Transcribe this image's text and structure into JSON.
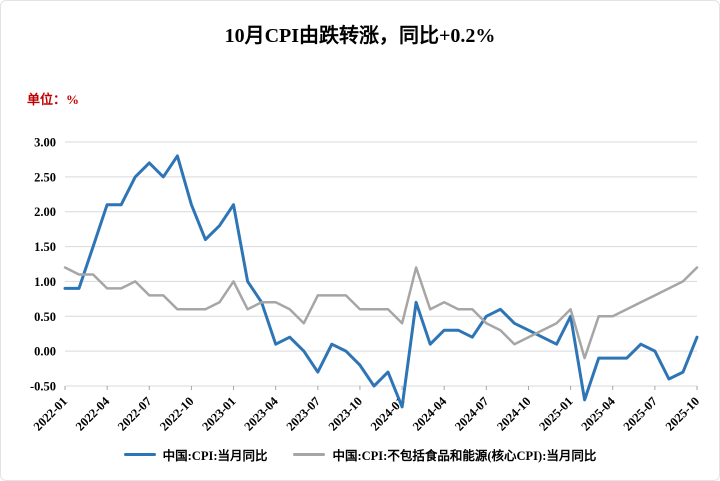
{
  "title": "10月CPI由跌转涨，同比+0.2%",
  "unit_label": "单位：%",
  "legend": {
    "items": [
      {
        "label": "中国:CPI:当月同比",
        "color": "#2E75B6",
        "thickness": 3
      },
      {
        "label": "中国:CPI:不包括食品和能源(核心CPI):当月同比",
        "color": "#A6A6A6",
        "thickness": 2.5
      }
    ]
  },
  "chart_data": {
    "type": "line",
    "x_tick_labels": [
      "2022-01",
      "2022-04",
      "2022-07",
      "2022-10",
      "2023-01",
      "2023-04",
      "2023-07",
      "2023-10",
      "2024-01",
      "2024-04",
      "2024-07",
      "2024-10",
      "2025-01",
      "2025-04",
      "2025-07",
      "2025-10"
    ],
    "x_tick_step": 3,
    "y_tick_labels": [
      "3.00",
      "2.50",
      "2.00",
      "1.50",
      "1.00",
      "0.50",
      "0.00",
      "-0.50"
    ],
    "ylim": [
      -0.5,
      3.0
    ],
    "y_tick_step": 0.5,
    "grid": true,
    "grid_color": "#D9D9D9",
    "legend_position": "bottom",
    "series": [
      {
        "name": "中国:CPI:当月同比",
        "color": "#2E75B6",
        "width": 3,
        "values": [
          0.9,
          0.9,
          1.5,
          2.1,
          2.1,
          2.5,
          2.7,
          2.5,
          2.8,
          2.1,
          1.6,
          1.8,
          2.1,
          1.0,
          0.7,
          0.1,
          0.2,
          0.0,
          -0.3,
          0.1,
          0.0,
          -0.2,
          -0.5,
          -0.3,
          -0.8,
          0.7,
          0.1,
          0.3,
          0.3,
          0.2,
          0.5,
          0.6,
          0.4,
          0.3,
          0.2,
          0.1,
          0.5,
          -0.7,
          -0.1,
          -0.1,
          -0.1,
          0.1,
          0.0,
          -0.4,
          -0.3,
          0.2
        ]
      },
      {
        "name": "中国:CPI:不包括食品和能源(核心CPI):当月同比",
        "color": "#A6A6A6",
        "width": 2.5,
        "values": [
          1.2,
          1.1,
          1.1,
          0.9,
          0.9,
          1.0,
          0.8,
          0.8,
          0.6,
          0.6,
          0.6,
          0.7,
          1.0,
          0.6,
          0.7,
          0.7,
          0.6,
          0.4,
          0.8,
          0.8,
          0.8,
          0.6,
          0.6,
          0.6,
          0.4,
          1.2,
          0.6,
          0.7,
          0.6,
          0.6,
          0.4,
          0.3,
          0.1,
          0.2,
          0.3,
          0.4,
          0.6,
          -0.1,
          0.5,
          0.5,
          0.6,
          0.7,
          0.8,
          0.9,
          1.0,
          1.2
        ]
      }
    ]
  }
}
